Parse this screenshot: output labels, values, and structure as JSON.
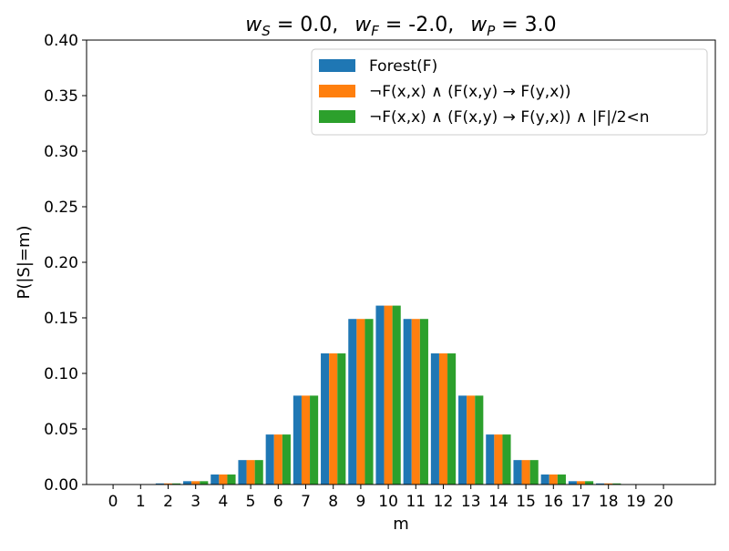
{
  "chart_data": {
    "type": "bar",
    "title": {
      "parts": [
        {
          "sym": "w",
          "sub": "S",
          "value": "= 0.0,"
        },
        {
          "sym": "w",
          "sub": "F",
          "value": "= -2.0,"
        },
        {
          "sym": "w",
          "sub": "P",
          "value": "= 3.0"
        }
      ]
    },
    "xlabel": "m",
    "ylabel": "P(|S|=m)",
    "ylim": [
      0,
      0.4
    ],
    "yticks": [
      "0.00",
      "0.05",
      "0.10",
      "0.15",
      "0.20",
      "0.25",
      "0.30",
      "0.35",
      "0.40"
    ],
    "categories": [
      "0",
      "1",
      "2",
      "3",
      "4",
      "5",
      "6",
      "7",
      "8",
      "9",
      "10",
      "11",
      "12",
      "13",
      "14",
      "15",
      "16",
      "17",
      "18",
      "19",
      "20"
    ],
    "grid": false,
    "legend_position": "top-right",
    "series": [
      {
        "name": "Forest(F)",
        "color": "#1f77b4",
        "values": [
          0.0,
          0.0,
          0.001,
          0.003,
          0.009,
          0.022,
          0.045,
          0.08,
          0.118,
          0.149,
          0.161,
          0.149,
          0.118,
          0.08,
          0.045,
          0.022,
          0.009,
          0.003,
          0.001,
          0.0,
          0.0
        ]
      },
      {
        "name": "¬F(x,x) ∧ (F(x,y) → F(y,x))",
        "color": "#ff7f0e",
        "values": [
          0.0,
          0.0,
          0.001,
          0.003,
          0.009,
          0.022,
          0.045,
          0.08,
          0.118,
          0.149,
          0.161,
          0.149,
          0.118,
          0.08,
          0.045,
          0.022,
          0.009,
          0.003,
          0.001,
          0.0,
          0.0
        ]
      },
      {
        "name": "¬F(x,x) ∧ (F(x,y) → F(y,x)) ∧ |F|/2<n",
        "color": "#2ca02c",
        "values": [
          0.0,
          0.0,
          0.001,
          0.003,
          0.009,
          0.022,
          0.045,
          0.08,
          0.118,
          0.149,
          0.161,
          0.149,
          0.118,
          0.08,
          0.045,
          0.022,
          0.009,
          0.003,
          0.001,
          0.0,
          0.0
        ]
      }
    ]
  }
}
